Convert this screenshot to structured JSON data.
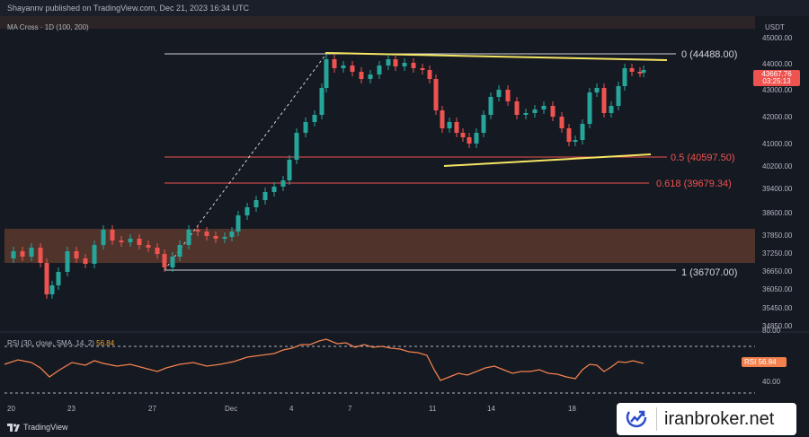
{
  "header": {
    "publisher_line": "Shayannv published on TradingView.com, Dec 21, 2023 16:34 UTC"
  },
  "indicator": {
    "ma_cross_label": "MA Cross · 1D (100, 200)",
    "rsi_label": "RSI (30, close, SMA, 14, 2)",
    "rsi_value": "56.84"
  },
  "price_axis": {
    "currency": "USDT",
    "ticks": [
      "45000.00",
      "44000.00",
      "43000.00",
      "42000.00",
      "41000.00",
      "40200.00",
      "39400.00",
      "38600.00",
      "37850.00",
      "37250.00",
      "36650.00",
      "36050.00",
      "35450.00",
      "34850.00"
    ],
    "last_price": "43667.76",
    "countdown": "03:25:13"
  },
  "rsi_axis": {
    "ticks": [
      "80.00",
      "40.00"
    ],
    "tag_label": "RSI",
    "tag_value": "56.84"
  },
  "time_axis": {
    "ticks": [
      "20",
      "23",
      "27",
      "Dec",
      "4",
      "7",
      "11",
      "14",
      "18"
    ]
  },
  "fib_levels": [
    {
      "ratio": "0",
      "label": "0 (44488.00)",
      "color": "#d1d4dc"
    },
    {
      "ratio": "0.5",
      "label": "0.5 (40597.50)",
      "color": "#ef5350"
    },
    {
      "ratio": "0.618",
      "label": "0.618 (39679.34)",
      "color": "#ef5350"
    },
    {
      "ratio": "1",
      "label": "1 (36707.00)",
      "color": "#d1d4dc"
    }
  ],
  "colors": {
    "up": "#26a69a",
    "down": "#ef5350",
    "triangle": "#f5e663",
    "zone": "#5a3a2e",
    "rsi": "#f2814d"
  },
  "footer": {
    "brand": "TradingView"
  },
  "watermark": {
    "text": "iranbroker.net",
    "icon": "trend-check-icon"
  }
}
